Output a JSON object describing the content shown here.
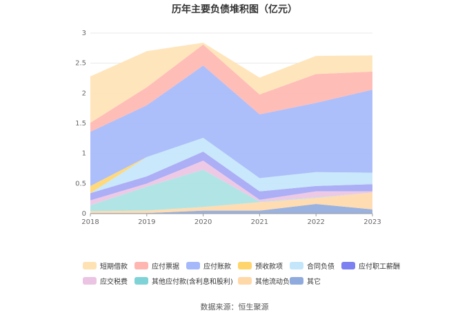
{
  "chart_data": {
    "type": "area",
    "stacked": true,
    "title": "历年主要负债堆积图（亿元）",
    "categories": [
      "2018",
      "2019",
      "2020",
      "2021",
      "2022",
      "2023"
    ],
    "ylim": [
      0,
      3
    ],
    "yticks": [
      "0",
      "0.5",
      "1",
      "1.5",
      "2",
      "2.5",
      "3"
    ],
    "grid": true,
    "legend_position": "bottom",
    "series": [
      {
        "name": "其它",
        "color": "#8FAADC",
        "values": [
          0.01,
          0.01,
          0.05,
          0.05,
          0.16,
          0.07
        ]
      },
      {
        "name": "其他流动负债",
        "color": "#FFD8A8",
        "values": [
          0.03,
          0.04,
          0.06,
          0.14,
          0.1,
          0.28
        ]
      },
      {
        "name": "其他应付款(含利息和股利)",
        "color": "#A8E2E2",
        "values": [
          0.1,
          0.4,
          0.62,
          0.01,
          0.01,
          0.0
        ]
      },
      {
        "name": "应交税费",
        "color": "#EBC3E3",
        "values": [
          0.08,
          0.05,
          0.15,
          0.03,
          0.1,
          0.02
        ]
      },
      {
        "name": "应付职工薪酬",
        "color": "#A3A6F5",
        "values": [
          0.12,
          0.12,
          0.15,
          0.14,
          0.09,
          0.12
        ]
      },
      {
        "name": "合同负债",
        "color": "#C3E6FB",
        "values": [
          0.0,
          0.32,
          0.23,
          0.22,
          0.23,
          0.19
        ]
      },
      {
        "name": "预收款项",
        "color": "#FFD56B",
        "values": [
          0.12,
          0.0,
          0.0,
          0.0,
          0.0,
          0.0
        ]
      },
      {
        "name": "应付账款",
        "color": "#A4B8FA",
        "values": [
          0.9,
          0.86,
          1.2,
          1.06,
          1.15,
          1.38
        ]
      },
      {
        "name": "应付票据",
        "color": "#FFB6B0",
        "values": [
          0.15,
          0.3,
          0.35,
          0.33,
          0.48,
          0.3
        ]
      },
      {
        "name": "短期借款",
        "color": "#FFE2B4",
        "values": [
          0.77,
          0.6,
          0.03,
          0.28,
          0.3,
          0.27
        ]
      }
    ]
  },
  "legend": [
    [
      {
        "name": "短期借款",
        "color": "#FFE2B4"
      },
      {
        "name": "应付票据",
        "color": "#FFB6B0"
      },
      {
        "name": "应付账款",
        "color": "#A4B8FA"
      },
      {
        "name": "预收款项",
        "color": "#FFD56B"
      },
      {
        "name": "合同负债",
        "color": "#C3E6FB"
      },
      {
        "name": "应付职工薪酬",
        "color": "#7C80F0"
      }
    ],
    [
      {
        "name": "应交税费",
        "color": "#EBC3E3"
      },
      {
        "name": "其他应付款(含利息和股利)",
        "color": "#7FD3D6"
      },
      {
        "name": "其他流动负债",
        "color": "#FFD8A8"
      },
      {
        "name": "其它",
        "color": "#8FAADC"
      }
    ]
  ],
  "source": "数据来源：恒生聚源"
}
